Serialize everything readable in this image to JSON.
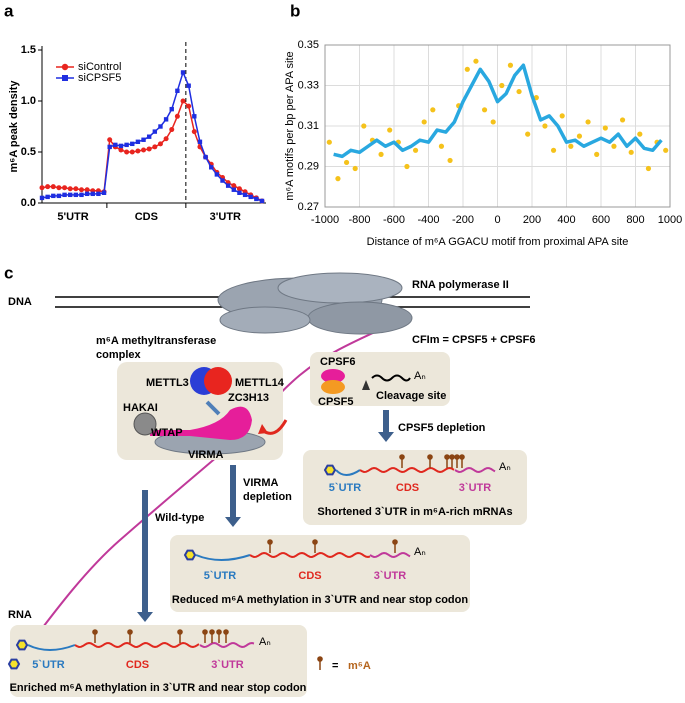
{
  "chart_data": [
    {
      "type": "line",
      "panel_label": "a",
      "ylabel": "m⁶A peak density",
      "regions": [
        "5'UTR",
        "CDS",
        "3'UTR"
      ],
      "ylim": [
        0,
        1.5
      ],
      "yticks": [
        {
          "value": 0,
          "label": "0.0"
        },
        0.5,
        {
          "value": 1,
          "label": "1.0"
        },
        1.5
      ],
      "legend": "upper left",
      "series": [
        {
          "name": "siControl",
          "color": "#e8251f",
          "marker": "circle",
          "values": [
            0.15,
            0.16,
            0.16,
            0.15,
            0.15,
            0.14,
            0.14,
            0.13,
            0.13,
            0.12,
            0.12,
            0.11,
            0.62,
            0.55,
            0.52,
            0.5,
            0.5,
            0.51,
            0.52,
            0.53,
            0.55,
            0.58,
            0.63,
            0.72,
            0.85,
            1.0,
            0.95,
            0.7,
            0.55,
            0.45,
            0.38,
            0.3,
            0.25,
            0.2,
            0.17,
            0.14,
            0.11,
            0.08,
            0.05,
            0.02
          ]
        },
        {
          "name": "siCPSF5",
          "color": "#1f2ee0",
          "marker": "square",
          "values": [
            0.05,
            0.06,
            0.07,
            0.07,
            0.08,
            0.08,
            0.08,
            0.08,
            0.09,
            0.09,
            0.09,
            0.1,
            0.55,
            0.57,
            0.56,
            0.57,
            0.58,
            0.6,
            0.62,
            0.65,
            0.7,
            0.75,
            0.82,
            0.92,
            1.1,
            1.28,
            1.15,
            0.85,
            0.6,
            0.45,
            0.35,
            0.28,
            0.22,
            0.17,
            0.13,
            0.1,
            0.08,
            0.06,
            0.04,
            0.02
          ]
        }
      ]
    },
    {
      "type": "scatter",
      "panel_label": "b",
      "ylabel": "m⁶A motifs per bp per APA site",
      "xlabel": "Distance of m⁶A GGACU motif from proximal APA site",
      "xlim": [
        -1000,
        1000
      ],
      "xticks": [
        -1000,
        -800,
        -600,
        -400,
        -200,
        0,
        200,
        400,
        600,
        800,
        1000
      ],
      "ylim": [
        0.27,
        0.35
      ],
      "yticks": [
        0.27,
        0.29,
        0.31,
        0.33,
        0.35
      ],
      "grid": true,
      "series": [
        {
          "type": "scatter",
          "color": "#f5c21b",
          "x": [
            -975,
            -925,
            -875,
            -825,
            -775,
            -725,
            -675,
            -625,
            -575,
            -525,
            -475,
            -425,
            -375,
            -325,
            -275,
            -225,
            -175,
            -125,
            -75,
            -25,
            25,
            75,
            125,
            175,
            225,
            275,
            325,
            375,
            425,
            475,
            525,
            575,
            625,
            675,
            725,
            775,
            825,
            875,
            925,
            975
          ],
          "values": [
            0.302,
            0.284,
            0.292,
            0.289,
            0.31,
            0.303,
            0.296,
            0.308,
            0.302,
            0.29,
            0.298,
            0.312,
            0.318,
            0.3,
            0.293,
            0.32,
            0.338,
            0.342,
            0.318,
            0.312,
            0.33,
            0.34,
            0.327,
            0.306,
            0.324,
            0.31,
            0.298,
            0.315,
            0.3,
            0.305,
            0.312,
            0.296,
            0.309,
            0.3,
            0.313,
            0.297,
            0.306,
            0.289,
            0.302,
            0.298
          ]
        },
        {
          "type": "line",
          "color": "#29a8e0",
          "x": [
            -950,
            -900,
            -850,
            -800,
            -750,
            -700,
            -650,
            -600,
            -550,
            -500,
            -450,
            -400,
            -350,
            -300,
            -250,
            -200,
            -150,
            -100,
            -50,
            0,
            50,
            100,
            150,
            200,
            250,
            300,
            350,
            400,
            450,
            500,
            550,
            600,
            650,
            700,
            750,
            800,
            850,
            900,
            950
          ],
          "values": [
            0.296,
            0.295,
            0.298,
            0.297,
            0.3,
            0.303,
            0.3,
            0.302,
            0.298,
            0.3,
            0.303,
            0.302,
            0.308,
            0.307,
            0.312,
            0.322,
            0.33,
            0.338,
            0.332,
            0.322,
            0.326,
            0.335,
            0.34,
            0.325,
            0.313,
            0.315,
            0.31,
            0.302,
            0.303,
            0.3,
            0.302,
            0.304,
            0.302,
            0.306,
            0.3,
            0.304,
            0.299,
            0.298,
            0.303
          ]
        }
      ]
    }
  ],
  "diagram": {
    "panel_label": "c",
    "labels": {
      "dna": "DNA",
      "polymerase": "RNA polymerase II",
      "complex_1": "m⁶A methyltransferase",
      "complex_2": "complex",
      "cfim": "CFIm = CPSF5 + CPSF6",
      "mettl3": "METTL3",
      "mettl14": "METTL14",
      "zc3h13": "ZC3H13",
      "hakai": "HAKAI",
      "wtap": "WTAP",
      "virma": "VIRMA",
      "cpsf6": "CPSF6",
      "cpsf5": "CPSF5",
      "cleavage": "Cleavage site",
      "tail": "Aₙ",
      "cpsf5_depletion": "CPSF5 depletion",
      "rna": "RNA",
      "wild_type": "Wild-type",
      "virma_dep_1": "VIRMA",
      "virma_dep_2": "depletion"
    },
    "mrna": [
      {
        "utr5": "5`UTR",
        "cds": "CDS",
        "utr3": "3`UTR",
        "tail": "Aₙ",
        "caption": "Shortened 3`UTR in m⁶A-rich mRNAs"
      },
      {
        "utr5": "5`UTR",
        "cds": "CDS",
        "utr3": "3`UTR",
        "tail": "Aₙ",
        "caption": "Reduced m⁶A methylation in 3`UTR and near stop codon"
      },
      {
        "utr5": "5`UTR",
        "cds": "CDS",
        "utr3": "3`UTR",
        "tail": "Aₙ",
        "caption": "Enriched m⁶A methylation in 3`UTR and near stop codon"
      }
    ],
    "legend": {
      "equals": "=",
      "label": "m⁶A"
    }
  }
}
